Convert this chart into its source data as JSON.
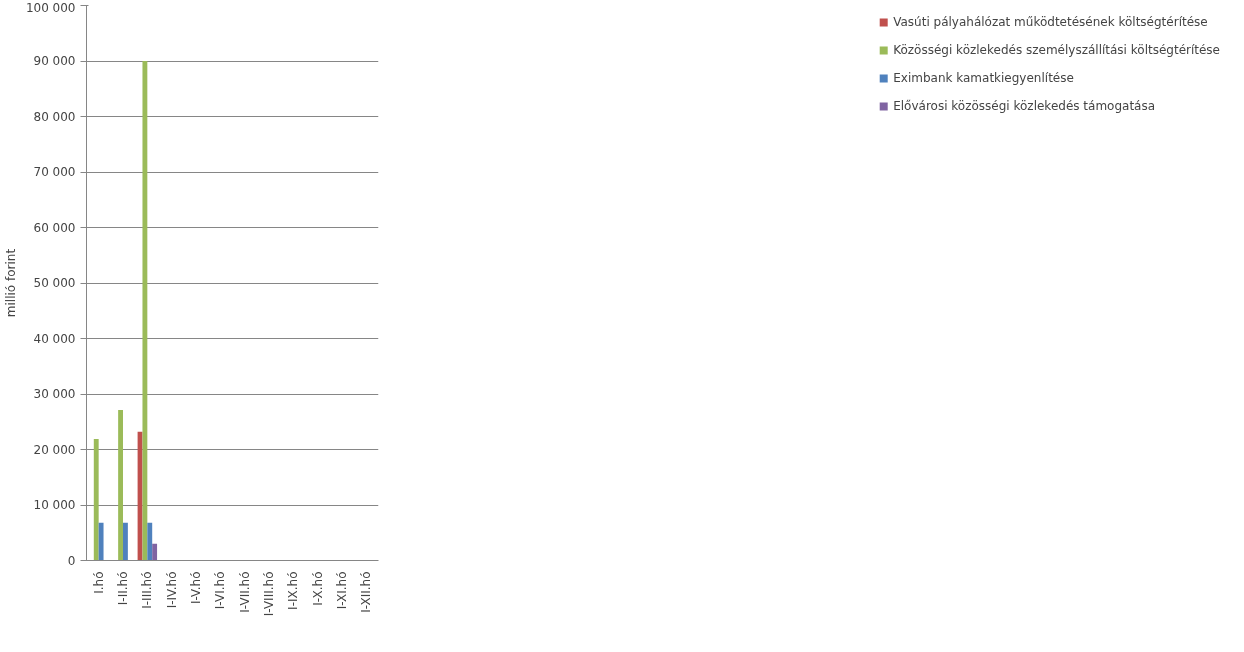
{
  "chart_data": {
    "type": "bar",
    "ylabel": "millió forint",
    "categories": [
      "I.hó",
      "I-II.hó",
      "I-III.hó",
      "I-IV.hó",
      "I-V.hó",
      "I-VI.hó",
      "I-VII.hó",
      "I-VIII.hó",
      "I-IX.hó",
      "I-X.hó",
      "I-XI.hó",
      "I-XII.hó"
    ],
    "series": [
      {
        "name": "Vasúti pályahálózat működtetésének költségtérítése",
        "color": "#c0504d",
        "values": [
          null,
          null,
          23200,
          null,
          null,
          null,
          null,
          null,
          null,
          null,
          null,
          null
        ]
      },
      {
        "name": "Közösségi közlekedés személyszállítási költségtérítése",
        "color": "#9bbb59",
        "values": [
          21900,
          27100,
          90000,
          null,
          null,
          null,
          null,
          null,
          null,
          null,
          null,
          null
        ]
      },
      {
        "name": "Eximbank kamatkiegyenlítése",
        "color": "#4f81bd",
        "values": [
          6800,
          6800,
          6800,
          null,
          null,
          null,
          null,
          null,
          null,
          null,
          null,
          null
        ]
      },
      {
        "name": "Elővárosi közösségi közlekedés támogatása",
        "color": "#8064a2",
        "values": [
          null,
          null,
          3000,
          null,
          null,
          null,
          null,
          null,
          null,
          null,
          null,
          null
        ]
      }
    ],
    "ylim": [
      0,
      100000
    ],
    "yticks": [
      0,
      {
        "value": 10000,
        "label": "10 000"
      },
      {
        "value": 20000,
        "label": "20 000"
      },
      {
        "value": 30000,
        "label": "30 000"
      },
      {
        "value": 40000,
        "label": "40 000"
      },
      {
        "value": 50000,
        "label": "50 000"
      },
      {
        "value": 60000,
        "label": "60 000"
      },
      {
        "value": 70000,
        "label": "70 000"
      },
      {
        "value": 80000,
        "label": "80 000"
      },
      {
        "value": 90000,
        "label": "90 000"
      },
      {
        "value": 100000,
        "label": "100 000"
      }
    ],
    "grid": "y",
    "legend": "right"
  }
}
